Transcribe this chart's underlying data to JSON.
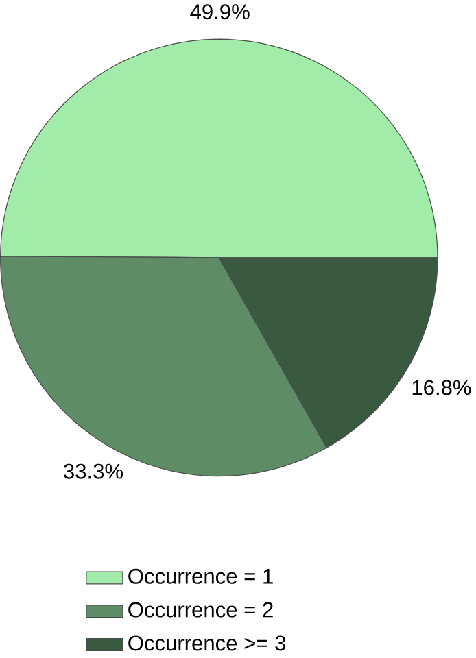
{
  "chart_data": {
    "type": "pie",
    "categories": [
      "Occurrence = 1",
      "Occurrence = 2",
      "Occurrence >= 3"
    ],
    "values": [
      49.9,
      33.3,
      16.8
    ],
    "colors": [
      "#a0eca8",
      "#5e8c64",
      "#3a5a3f"
    ],
    "value_labels": [
      "49.9%",
      "33.3%",
      "16.8%"
    ],
    "legend": "bottom"
  }
}
